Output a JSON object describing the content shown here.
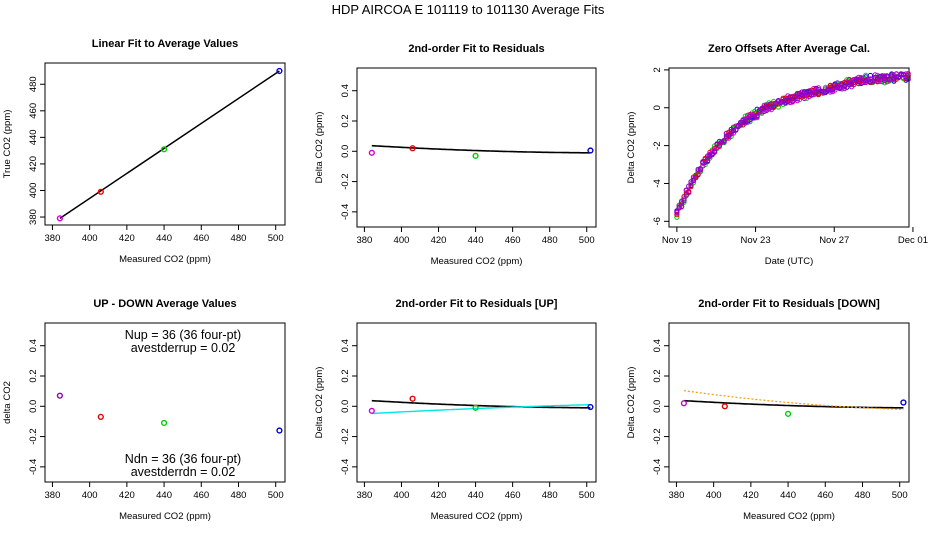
{
  "figure": {
    "title": "HDP    AIRCOA E    101119 to 101130    Average Fits"
  },
  "colors": {
    "magenta": "#cc00cc",
    "red": "#dd0000",
    "green": "#00cc00",
    "blue": "#0000cc",
    "purple": "#8800cc",
    "cyan": "#00e5e5",
    "orange": "#ff9900",
    "black": "#000000"
  },
  "chart_data": [
    {
      "id": "p1",
      "type": "scatter",
      "title": "Linear Fit to Average Values",
      "xlabel": "Measured CO2 (ppm)",
      "ylabel": "True CO2 (ppm)",
      "xlim": [
        376,
        505
      ],
      "ylim": [
        374,
        496
      ],
      "xticks": [
        380,
        400,
        420,
        440,
        460,
        480,
        500
      ],
      "yticks": [
        380,
        400,
        420,
        440,
        460,
        480
      ],
      "points": [
        {
          "x": 384,
          "y": 379,
          "color": "magenta"
        },
        {
          "x": 406,
          "y": 399,
          "color": "red"
        },
        {
          "x": 440,
          "y": 431,
          "color": "green"
        },
        {
          "x": 502,
          "y": 490,
          "color": "blue"
        }
      ],
      "lines": [
        {
          "color": "black",
          "width": 1.5,
          "points": [
            [
              384,
              379
            ],
            [
              502,
              490
            ]
          ]
        }
      ]
    },
    {
      "id": "p2",
      "type": "scatter",
      "title": "2nd-order Fit to Residuals",
      "xlabel": "Measured CO2 (ppm)",
      "ylabel": "Delta CO2 (ppm)",
      "xlim": [
        376,
        505
      ],
      "ylim": [
        -0.5,
        0.55
      ],
      "xticks": [
        380,
        400,
        420,
        440,
        460,
        480,
        500
      ],
      "yticks": [
        -0.4,
        -0.2,
        0.0,
        0.2,
        0.4
      ],
      "points": [
        {
          "x": 384,
          "y": -0.01,
          "color": "magenta"
        },
        {
          "x": 406,
          "y": 0.02,
          "color": "red"
        },
        {
          "x": 440,
          "y": -0.03,
          "color": "green"
        },
        {
          "x": 502,
          "y": 0.005,
          "color": "blue"
        }
      ],
      "curves": [
        {
          "color": "black",
          "width": 1.6,
          "dash": "",
          "a": 0.01,
          "b": -0.025,
          "c": 0.005
        }
      ]
    },
    {
      "id": "p3",
      "type": "scatter",
      "title": "Zero Offsets After Average Cal.",
      "xlabel": "Date (UTC)",
      "ylabel": "Delta CO2 (ppm)",
      "xlim": [
        18.6,
        30.8
      ],
      "ylim": [
        -6.3,
        2.1
      ],
      "xticks": [
        19,
        23,
        27,
        31
      ],
      "xticklabels": [
        "Nov 19",
        "Nov 23",
        "Nov 27",
        "Dec 01"
      ],
      "yticks": [
        -6,
        -4,
        -2,
        0,
        2
      ],
      "time_series": {
        "t_start": 19.0,
        "t_end": 30.9,
        "step": 0.12,
        "model": "exp-approach",
        "y_start": -5.6,
        "y_end": 1.45,
        "tau": 2.9,
        "lift_after": 26.5,
        "lift_amount": 0.3,
        "series": [
          {
            "color": "blue",
            "jitter": 0.2
          },
          {
            "color": "green",
            "jitter": 0.25
          },
          {
            "color": "red",
            "jitter": 0.18
          },
          {
            "color": "magenta",
            "jitter": 0.22
          },
          {
            "color": "purple",
            "jitter": 0.15
          }
        ]
      }
    },
    {
      "id": "p4",
      "type": "scatter",
      "title": "UP - DOWN Average Values",
      "xlabel": "Measured CO2 (ppm)",
      "ylabel": "delta CO2",
      "xlim": [
        376,
        505
      ],
      "ylim": [
        -0.5,
        0.55
      ],
      "xticks": [
        380,
        400,
        420,
        440,
        460,
        480,
        500
      ],
      "yticks": [
        -0.4,
        -0.2,
        0.0,
        0.2,
        0.4
      ],
      "points": [
        {
          "x": 384,
          "y": 0.07,
          "color": "purple"
        },
        {
          "x": 406,
          "y": -0.07,
          "color": "red"
        },
        {
          "x": 440,
          "y": -0.11,
          "color": "green"
        },
        {
          "x": 502,
          "y": -0.16,
          "color": "blue"
        }
      ],
      "annotations": {
        "nup": "Nup = 36 (36 four-pt)",
        "avestderrup": "avestderrup =  0.02",
        "ndn": "Ndn = 36 (36 four-pt)",
        "avestderrdn": "avestderrdn =  0.02"
      }
    },
    {
      "id": "p5",
      "type": "scatter",
      "title": "2nd-order Fit to Residuals [UP]",
      "xlabel": "Measured CO2 (ppm)",
      "ylabel": "Delta CO2 (ppm)",
      "xlim": [
        376,
        505
      ],
      "ylim": [
        -0.5,
        0.55
      ],
      "xticks": [
        380,
        400,
        420,
        440,
        460,
        480,
        500
      ],
      "yticks": [
        -0.4,
        -0.2,
        0.0,
        0.2,
        0.4
      ],
      "points": [
        {
          "x": 384,
          "y": -0.03,
          "color": "magenta"
        },
        {
          "x": 406,
          "y": 0.05,
          "color": "red"
        },
        {
          "x": 440,
          "y": -0.01,
          "color": "green"
        },
        {
          "x": 502,
          "y": -0.005,
          "color": "blue"
        }
      ],
      "curves": [
        {
          "color": "black",
          "width": 1.6,
          "dash": "",
          "a": 0.01,
          "b": -0.025,
          "c": 0.005
        },
        {
          "color": "cyan",
          "width": 1.4,
          "dash": "",
          "a": -0.005,
          "b": 0.03,
          "c": -0.015
        }
      ]
    },
    {
      "id": "p6",
      "type": "scatter",
      "title": "2nd-order Fit to Residuals [DOWN]",
      "xlabel": "Measured CO2 (ppm)",
      "ylabel": "Delta CO2 (ppm)",
      "xlim": [
        376,
        505
      ],
      "ylim": [
        -0.5,
        0.55
      ],
      "xticks": [
        380,
        400,
        420,
        440,
        460,
        480,
        500
      ],
      "yticks": [
        -0.4,
        -0.2,
        0.0,
        0.2,
        0.4
      ],
      "points": [
        {
          "x": 384,
          "y": 0.02,
          "color": "magenta"
        },
        {
          "x": 406,
          "y": 0.0,
          "color": "red"
        },
        {
          "x": 440,
          "y": -0.05,
          "color": "green"
        },
        {
          "x": 502,
          "y": 0.025,
          "color": "blue"
        }
      ],
      "curves": [
        {
          "color": "black",
          "width": 1.6,
          "dash": "",
          "a": 0.01,
          "b": -0.025,
          "c": 0.005
        },
        {
          "color": "orange",
          "width": 1.2,
          "dash": "2,2",
          "a": 0.02,
          "b": -0.065,
          "c": 0.025
        }
      ]
    }
  ]
}
